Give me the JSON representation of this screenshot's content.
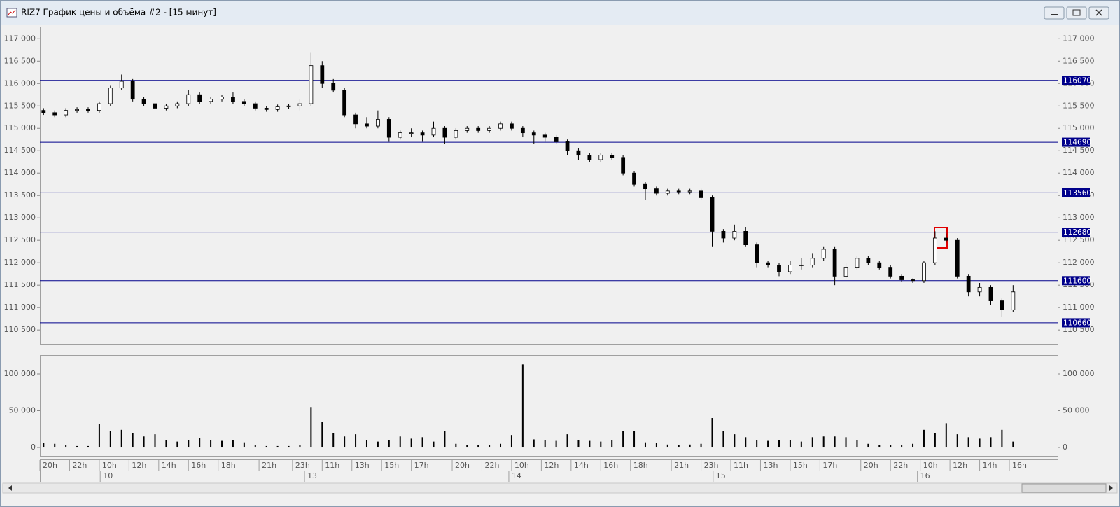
{
  "window": {
    "title": "RIZ7 График цены и объёма #2 - [15 минут]"
  },
  "chart_data": [
    {
      "type": "candlestick",
      "x": [
        1,
        4,
        7,
        10,
        13,
        16,
        19,
        22,
        25,
        28,
        31,
        34,
        37,
        40,
        43,
        46,
        49,
        52,
        55,
        58,
        61,
        64,
        67,
        70,
        73,
        76,
        79,
        82,
        85,
        88,
        91,
        94,
        97,
        100,
        103,
        106,
        109,
        112,
        115,
        118,
        121,
        124,
        127,
        130,
        133,
        136,
        139,
        142,
        145,
        148,
        151,
        154,
        157,
        160,
        163,
        166,
        169,
        172,
        175,
        178,
        181,
        184,
        187,
        190,
        193,
        196,
        199,
        202,
        205,
        208,
        211,
        214,
        217,
        220,
        223,
        226,
        229,
        232,
        235,
        238,
        241,
        244,
        247,
        250,
        253,
        256,
        259,
        262
      ],
      "open": [
        115400,
        115350,
        115300,
        115400,
        115420,
        115400,
        115550,
        115900,
        116050,
        115650,
        115550,
        115450,
        115500,
        115550,
        115750,
        115600,
        115650,
        115700,
        115600,
        115550,
        115450,
        115420,
        115480,
        115500,
        115550,
        116400,
        116000,
        115850,
        115300,
        115100,
        115050,
        115200,
        114800,
        114900,
        114900,
        114850,
        115000,
        114800,
        114950,
        115000,
        114950,
        115000,
        115100,
        115000,
        114900,
        114850,
        114800,
        114700,
        114500,
        114400,
        114300,
        114400,
        114350,
        114000,
        113750,
        113650,
        113550,
        113600,
        113580,
        113600,
        113450,
        112700,
        112550,
        112700,
        112400,
        112000,
        111950,
        111800,
        111950,
        111950,
        112100,
        112300,
        111700,
        111900,
        112100,
        112000,
        111900,
        111700,
        111620,
        111600,
        112000,
        112550,
        112500,
        111700,
        111350,
        111450,
        111150,
        110950
      ],
      "high": [
        115450,
        115400,
        115450,
        115470,
        115470,
        115600,
        115950,
        116200,
        116100,
        115700,
        115600,
        115550,
        115600,
        115850,
        115800,
        115700,
        115750,
        115800,
        115650,
        115600,
        115500,
        115530,
        115550,
        115650,
        116700,
        116500,
        116100,
        115900,
        115350,
        115250,
        115400,
        115250,
        114950,
        115000,
        114950,
        115150,
        115050,
        115000,
        115050,
        115050,
        115050,
        115150,
        115150,
        115050,
        114950,
        114900,
        114850,
        114750,
        114550,
        114450,
        114450,
        114450,
        114400,
        114050,
        113800,
        113700,
        113650,
        113650,
        113650,
        113650,
        113500,
        112750,
        112850,
        112800,
        112450,
        112050,
        112000,
        112050,
        112100,
        112200,
        112350,
        112350,
        112000,
        112150,
        112150,
        112050,
        111950,
        111750,
        111650,
        112050,
        112700,
        112650,
        112550,
        111750,
        111550,
        111500,
        111200,
        111500
      ],
      "low": [
        115300,
        115250,
        115250,
        115350,
        115350,
        115350,
        115500,
        115850,
        115600,
        115500,
        115300,
        115400,
        115450,
        115500,
        115550,
        115550,
        115600,
        115550,
        115500,
        115400,
        115370,
        115370,
        115430,
        115400,
        115500,
        115900,
        115800,
        115250,
        115000,
        115000,
        115000,
        114700,
        114750,
        114800,
        114700,
        114800,
        114650,
        114750,
        114900,
        114900,
        114900,
        114950,
        114950,
        114800,
        114650,
        114700,
        114650,
        114400,
        114300,
        114250,
        114250,
        114300,
        113950,
        113700,
        113400,
        113500,
        113500,
        113530,
        113530,
        113400,
        112350,
        112450,
        112500,
        112350,
        111900,
        111900,
        111700,
        111750,
        111850,
        111900,
        112050,
        111500,
        111650,
        111850,
        111950,
        111850,
        111650,
        111570,
        111550,
        111550,
        111950,
        112450,
        111650,
        111250,
        111250,
        111050,
        110800,
        110900
      ],
      "close": [
        115350,
        115300,
        115400,
        115420,
        115400,
        115550,
        115900,
        116050,
        115650,
        115550,
        115450,
        115500,
        115550,
        115750,
        115600,
        115650,
        115700,
        115600,
        115550,
        115450,
        115420,
        115480,
        115500,
        115550,
        116400,
        116000,
        115850,
        115300,
        115100,
        115050,
        115200,
        114800,
        114900,
        114900,
        114850,
        115000,
        114800,
        114950,
        115000,
        114950,
        115000,
        115100,
        115000,
        114900,
        114850,
        114800,
        114700,
        114500,
        114400,
        114300,
        114400,
        114350,
        114000,
        113750,
        113650,
        113550,
        113600,
        113580,
        113600,
        113450,
        112700,
        112550,
        112700,
        112400,
        112000,
        111950,
        111800,
        111950,
        111950,
        112100,
        112300,
        111700,
        111900,
        112100,
        112000,
        111900,
        111700,
        111620,
        111600,
        112000,
        112550,
        112500,
        111700,
        111350,
        111450,
        111150,
        110950,
        111350
      ],
      "up_color": "#ffffff",
      "down_color": "#000000",
      "xlim": [
        0,
        274
      ],
      "ylim": [
        110190,
        117270
      ],
      "yticks": [
        {
          "value": 110500,
          "label": "110 500"
        },
        {
          "value": 111000,
          "label": "111 000"
        },
        {
          "value": 111500,
          "label": "111 500"
        },
        {
          "value": 112000,
          "label": "112 000"
        },
        {
          "value": 112500,
          "label": "112 500"
        },
        {
          "value": 113000,
          "label": "113 000"
        },
        {
          "value": 113500,
          "label": "113 500"
        },
        {
          "value": 114000,
          "label": "114 000"
        },
        {
          "value": 114500,
          "label": "114 500"
        },
        {
          "value": 115000,
          "label": "115 000"
        },
        {
          "value": 115500,
          "label": "115 500"
        },
        {
          "value": 116000,
          "label": "116 000"
        },
        {
          "value": 116500,
          "label": "116 500"
        },
        {
          "value": 117000,
          "label": "117 000"
        }
      ],
      "levels": [
        116070,
        114690,
        113560,
        112680,
        111600,
        110660
      ],
      "level_color": "#00008b"
    },
    {
      "type": "bar",
      "x": [
        1,
        4,
        7,
        10,
        13,
        16,
        19,
        22,
        25,
        28,
        31,
        34,
        37,
        40,
        43,
        46,
        49,
        52,
        55,
        58,
        61,
        64,
        67,
        70,
        73,
        76,
        79,
        82,
        85,
        88,
        91,
        94,
        97,
        100,
        103,
        106,
        109,
        112,
        115,
        118,
        121,
        124,
        127,
        130,
        133,
        136,
        139,
        142,
        145,
        148,
        151,
        154,
        157,
        160,
        163,
        166,
        169,
        172,
        175,
        178,
        181,
        184,
        187,
        190,
        193,
        196,
        199,
        202,
        205,
        208,
        211,
        214,
        217,
        220,
        223,
        226,
        229,
        232,
        235,
        238,
        241,
        244,
        247,
        250,
        253,
        256,
        259,
        262
      ],
      "values": [
        6000,
        5000,
        3000,
        2000,
        2000,
        32000,
        22000,
        24000,
        20000,
        15000,
        18000,
        10000,
        8000,
        10000,
        13000,
        10000,
        9000,
        10000,
        7000,
        3000,
        2000,
        2000,
        2000,
        3000,
        55000,
        35000,
        20000,
        15000,
        18000,
        10000,
        8000,
        10000,
        15000,
        12000,
        14000,
        8000,
        22000,
        5000,
        3000,
        3000,
        3000,
        5000,
        17000,
        113000,
        11000,
        10000,
        9000,
        18000,
        10000,
        9000,
        8000,
        10000,
        22000,
        22000,
        7000,
        6000,
        4000,
        3000,
        4000,
        5000,
        40000,
        22000,
        18000,
        14000,
        10000,
        9000,
        10000,
        10000,
        8000,
        14000,
        15000,
        15000,
        14000,
        10000,
        5000,
        3000,
        3000,
        3000,
        5000,
        24000,
        20000,
        33000,
        18000,
        14000,
        12000,
        14000,
        24000,
        8000
      ],
      "color": "#000000",
      "xlim": [
        0,
        274
      ],
      "ylim": [
        -11400,
        125700
      ],
      "yticks": [
        0,
        {
          "value": 50000,
          "label": "50 000"
        },
        {
          "value": 100000,
          "label": "100 000"
        }
      ],
      "xticks": [
        {
          "value": 0,
          "label": "20h"
        },
        {
          "value": 8,
          "label": "22h"
        },
        {
          "value": 16,
          "label": "10h"
        },
        {
          "value": 24,
          "label": "12h"
        },
        {
          "value": 32,
          "label": "14h"
        },
        {
          "value": 40,
          "label": "16h"
        },
        {
          "value": 48,
          "label": "18h"
        },
        {
          "value": 59,
          "label": "21h"
        },
        {
          "value": 68,
          "label": "23h"
        },
        {
          "value": 76,
          "label": "11h"
        },
        {
          "value": 84,
          "label": "13h"
        },
        {
          "value": 92,
          "label": "15h"
        },
        {
          "value": 100,
          "label": "17h"
        },
        {
          "value": 111,
          "label": "20h"
        },
        {
          "value": 119,
          "label": "22h"
        },
        {
          "value": 127,
          "label": "10h"
        },
        {
          "value": 135,
          "label": "12h"
        },
        {
          "value": 143,
          "label": "14h"
        },
        {
          "value": 151,
          "label": "16h"
        },
        {
          "value": 159,
          "label": "18h"
        },
        {
          "value": 170,
          "label": "21h"
        },
        {
          "value": 178,
          "label": "23h"
        },
        {
          "value": 186,
          "label": "11h"
        },
        {
          "value": 194,
          "label": "13h"
        },
        {
          "value": 202,
          "label": "15h"
        },
        {
          "value": 210,
          "label": "17h"
        },
        {
          "value": 221,
          "label": "20h"
        },
        {
          "value": 229,
          "label": "22h"
        },
        {
          "value": 237,
          "label": "10h"
        },
        {
          "value": 245,
          "label": "12h"
        },
        {
          "value": 253,
          "label": "14h"
        },
        {
          "value": 261,
          "label": "16h"
        }
      ],
      "day_ticks": [
        {
          "value": 17,
          "label": "10"
        },
        {
          "value": 72,
          "label": "13"
        },
        {
          "value": 127,
          "label": "14"
        },
        {
          "value": 182,
          "label": "15"
        },
        {
          "value": 237,
          "label": "16"
        }
      ]
    }
  ]
}
